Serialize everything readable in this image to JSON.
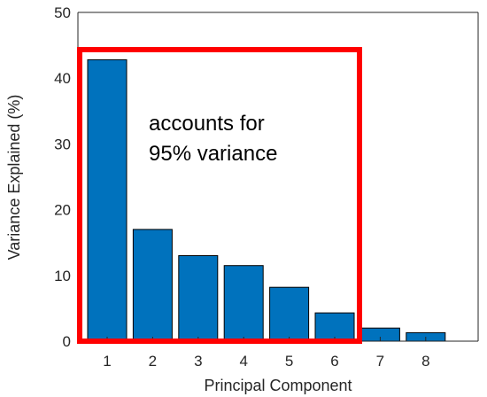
{
  "chart_data": {
    "type": "bar",
    "categories": [
      "1",
      "2",
      "3",
      "4",
      "5",
      "6",
      "7",
      "8"
    ],
    "values": [
      42.8,
      17.0,
      13.0,
      11.5,
      8.2,
      4.3,
      2.0,
      1.3
    ],
    "xlabel": "Principal Component",
    "ylabel": "Variance Explained (%)",
    "ylim": [
      0,
      50
    ],
    "yticks": [
      "0",
      "10",
      "20",
      "30",
      "40",
      "50"
    ],
    "grid": false,
    "bar_color": "#0072BD",
    "annotation": {
      "lines": [
        "accounts for",
        "95% variance"
      ],
      "box_color": "#ff0000",
      "box_covers_components": [
        "1",
        "6"
      ]
    }
  }
}
